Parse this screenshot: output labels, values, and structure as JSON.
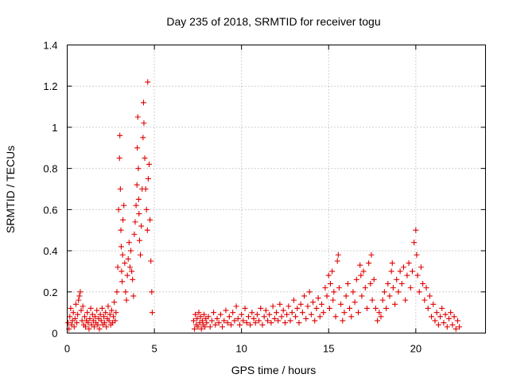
{
  "chart_data": {
    "type": "scatter",
    "title": "Day 235 of 2018, SRMTID for receiver togu",
    "xlabel": "GPS time / hours",
    "ylabel": "SRMTID / TECUs",
    "xlim": [
      0,
      24
    ],
    "ylim": [
      0,
      1.4
    ],
    "xticks": [
      0,
      5,
      10,
      15,
      20
    ],
    "xtick_labels": [
      "0",
      "5",
      "10",
      "15",
      "20"
    ],
    "yticks": [
      0,
      0.2,
      0.4,
      0.6,
      0.8,
      1.0,
      1.2,
      1.4
    ],
    "ytick_labels": [
      "0",
      "0.2",
      "0.4",
      "0.6",
      "0.8",
      "1",
      "1.2",
      "1.4"
    ],
    "grid": true,
    "marker": "+",
    "color": "#e00000",
    "series": [
      {
        "name": "SRMTID",
        "points": [
          [
            0.05,
            0.05
          ],
          [
            0.1,
            0.02
          ],
          [
            0.15,
            0.08
          ],
          [
            0.2,
            0.12
          ],
          [
            0.25,
            0.04
          ],
          [
            0.3,
            0.06
          ],
          [
            0.35,
            0.1
          ],
          [
            0.4,
            0.03
          ],
          [
            0.45,
            0.07
          ],
          [
            0.5,
            0.14
          ],
          [
            0.55,
            0.05
          ],
          [
            0.6,
            0.09
          ],
          [
            0.65,
            0.16
          ],
          [
            0.7,
            0.18
          ],
          [
            0.75,
            0.2
          ],
          [
            0.8,
            0.11
          ],
          [
            0.85,
            0.06
          ],
          [
            0.9,
            0.13
          ],
          [
            0.95,
            0.04
          ],
          [
            1.0,
            0.08
          ],
          [
            1.05,
            0.03
          ],
          [
            1.1,
            0.06
          ],
          [
            1.15,
            0.1
          ],
          [
            1.2,
            0.05
          ],
          [
            1.25,
            0.02
          ],
          [
            1.3,
            0.07
          ],
          [
            1.35,
            0.12
          ],
          [
            1.4,
            0.04
          ],
          [
            1.45,
            0.09
          ],
          [
            1.5,
            0.06
          ],
          [
            1.55,
            0.03
          ],
          [
            1.6,
            0.08
          ],
          [
            1.65,
            0.05
          ],
          [
            1.7,
            0.11
          ],
          [
            1.75,
            0.04
          ],
          [
            1.8,
            0.07
          ],
          [
            1.85,
            0.02
          ],
          [
            1.9,
            0.09
          ],
          [
            1.95,
            0.06
          ],
          [
            2.0,
            0.12
          ],
          [
            2.05,
            0.04
          ],
          [
            2.1,
            0.08
          ],
          [
            2.15,
            0.05
          ],
          [
            2.2,
            0.1
          ],
          [
            2.25,
            0.03
          ],
          [
            2.3,
            0.07
          ],
          [
            2.35,
            0.13
          ],
          [
            2.4,
            0.06
          ],
          [
            2.45,
            0.09
          ],
          [
            2.5,
            0.04
          ],
          [
            2.55,
            0.11
          ],
          [
            2.6,
            0.05
          ],
          [
            2.65,
            0.08
          ],
          [
            2.7,
            0.15
          ],
          [
            2.75,
            0.06
          ],
          [
            2.8,
            0.1
          ],
          [
            2.85,
            0.2
          ],
          [
            2.9,
            0.32
          ],
          [
            2.95,
            0.6
          ],
          [
            3.0,
            0.85
          ],
          [
            3.02,
            0.96
          ],
          [
            3.05,
            0.7
          ],
          [
            3.08,
            0.5
          ],
          [
            3.1,
            0.42
          ],
          [
            3.12,
            0.3
          ],
          [
            3.15,
            0.25
          ],
          [
            3.18,
            0.38
          ],
          [
            3.2,
            0.55
          ],
          [
            3.25,
            0.62
          ],
          [
            3.3,
            0.34
          ],
          [
            3.35,
            0.2
          ],
          [
            3.4,
            0.16
          ],
          [
            3.45,
            0.28
          ],
          [
            3.5,
            0.36
          ],
          [
            3.55,
            0.44
          ],
          [
            3.6,
            0.32
          ],
          [
            3.65,
            0.4
          ],
          [
            3.7,
            0.3
          ],
          [
            3.75,
            0.26
          ],
          [
            3.8,
            0.18
          ],
          [
            3.85,
            0.48
          ],
          [
            3.9,
            0.54
          ],
          [
            3.95,
            0.62
          ],
          [
            4.0,
            0.72
          ],
          [
            4.02,
            0.9
          ],
          [
            4.05,
            1.05
          ],
          [
            4.08,
            0.8
          ],
          [
            4.1,
            0.65
          ],
          [
            4.12,
            0.58
          ],
          [
            4.15,
            0.45
          ],
          [
            4.2,
            0.38
          ],
          [
            4.25,
            0.52
          ],
          [
            4.3,
            0.7
          ],
          [
            4.35,
            0.95
          ],
          [
            4.38,
            1.12
          ],
          [
            4.4,
            1.02
          ],
          [
            4.45,
            0.85
          ],
          [
            4.5,
            0.7
          ],
          [
            4.55,
            0.6
          ],
          [
            4.6,
            0.5
          ],
          [
            4.62,
            1.22
          ],
          [
            4.65,
            0.75
          ],
          [
            4.7,
            0.82
          ],
          [
            4.75,
            0.55
          ],
          [
            4.8,
            0.35
          ],
          [
            4.85,
            0.2
          ],
          [
            4.88,
            0.1
          ],
          [
            7.25,
            0.06
          ],
          [
            7.3,
            0.02
          ],
          [
            7.35,
            0.09
          ],
          [
            7.4,
            0.04
          ],
          [
            7.45,
            0.07
          ],
          [
            7.5,
            0.03
          ],
          [
            7.55,
            0.1
          ],
          [
            7.6,
            0.05
          ],
          [
            7.65,
            0.08
          ],
          [
            7.7,
            0.02
          ],
          [
            7.75,
            0.06
          ],
          [
            7.8,
            0.04
          ],
          [
            7.85,
            0.09
          ],
          [
            7.9,
            0.03
          ],
          [
            7.95,
            0.07
          ],
          [
            8.0,
            0.05
          ],
          [
            8.1,
            0.08
          ],
          [
            8.2,
            0.03
          ],
          [
            8.3,
            0.06
          ],
          [
            8.4,
            0.1
          ],
          [
            8.5,
            0.04
          ],
          [
            8.6,
            0.07
          ],
          [
            8.7,
            0.05
          ],
          [
            8.8,
            0.09
          ],
          [
            8.9,
            0.03
          ],
          [
            9.0,
            0.06
          ],
          [
            9.1,
            0.11
          ],
          [
            9.2,
            0.05
          ],
          [
            9.3,
            0.08
          ],
          [
            9.4,
            0.04
          ],
          [
            9.5,
            0.1
          ],
          [
            9.6,
            0.06
          ],
          [
            9.7,
            0.13
          ],
          [
            9.8,
            0.07
          ],
          [
            9.9,
            0.04
          ],
          [
            10.0,
            0.09
          ],
          [
            10.1,
            0.06
          ],
          [
            10.2,
            0.12
          ],
          [
            10.3,
            0.05
          ],
          [
            10.4,
            0.08
          ],
          [
            10.5,
            0.04
          ],
          [
            10.6,
            0.1
          ],
          [
            10.7,
            0.07
          ],
          [
            10.8,
            0.05
          ],
          [
            10.9,
            0.09
          ],
          [
            11.0,
            0.06
          ],
          [
            11.1,
            0.12
          ],
          [
            11.2,
            0.04
          ],
          [
            11.3,
            0.08
          ],
          [
            11.4,
            0.11
          ],
          [
            11.5,
            0.06
          ],
          [
            11.6,
            0.09
          ],
          [
            11.7,
            0.05
          ],
          [
            11.8,
            0.13
          ],
          [
            11.9,
            0.07
          ],
          [
            12.0,
            0.1
          ],
          [
            12.1,
            0.06
          ],
          [
            12.2,
            0.14
          ],
          [
            12.3,
            0.08
          ],
          [
            12.4,
            0.11
          ],
          [
            12.5,
            0.05
          ],
          [
            12.6,
            0.09
          ],
          [
            12.7,
            0.13
          ],
          [
            12.8,
            0.06
          ],
          [
            12.9,
            0.1
          ],
          [
            13.0,
            0.16
          ],
          [
            13.1,
            0.08
          ],
          [
            13.2,
            0.12
          ],
          [
            13.3,
            0.05
          ],
          [
            13.4,
            0.14
          ],
          [
            13.5,
            0.1
          ],
          [
            13.6,
            0.18
          ],
          [
            13.7,
            0.07
          ],
          [
            13.8,
            0.13
          ],
          [
            13.9,
            0.2
          ],
          [
            14.0,
            0.09
          ],
          [
            14.1,
            0.15
          ],
          [
            14.2,
            0.06
          ],
          [
            14.3,
            0.12
          ],
          [
            14.4,
            0.17
          ],
          [
            14.5,
            0.08
          ],
          [
            14.6,
            0.14
          ],
          [
            14.7,
            0.1
          ],
          [
            14.8,
            0.22
          ],
          [
            14.9,
            0.18
          ],
          [
            15.0,
            0.28
          ],
          [
            15.05,
            0.12
          ],
          [
            15.1,
            0.24
          ],
          [
            15.2,
            0.3
          ],
          [
            15.25,
            0.16
          ],
          [
            15.3,
            0.2
          ],
          [
            15.4,
            0.08
          ],
          [
            15.5,
            0.35
          ],
          [
            15.55,
            0.38
          ],
          [
            15.6,
            0.22
          ],
          [
            15.7,
            0.14
          ],
          [
            15.8,
            0.06
          ],
          [
            15.9,
            0.1
          ],
          [
            16.0,
            0.18
          ],
          [
            16.1,
            0.24
          ],
          [
            16.2,
            0.12
          ],
          [
            16.3,
            0.08
          ],
          [
            16.4,
            0.2
          ],
          [
            16.5,
            0.15
          ],
          [
            16.6,
            0.26
          ],
          [
            16.7,
            0.1
          ],
          [
            16.8,
            0.33
          ],
          [
            16.85,
            0.28
          ],
          [
            16.9,
            0.18
          ],
          [
            17.0,
            0.3
          ],
          [
            17.1,
            0.22
          ],
          [
            17.2,
            0.12
          ],
          [
            17.3,
            0.34
          ],
          [
            17.4,
            0.24
          ],
          [
            17.45,
            0.38
          ],
          [
            17.5,
            0.16
          ],
          [
            17.6,
            0.26
          ],
          [
            17.7,
            0.12
          ],
          [
            17.8,
            0.06
          ],
          [
            17.9,
            0.1
          ],
          [
            18.0,
            0.08
          ],
          [
            18.1,
            0.16
          ],
          [
            18.2,
            0.2
          ],
          [
            18.3,
            0.12
          ],
          [
            18.4,
            0.24
          ],
          [
            18.5,
            0.18
          ],
          [
            18.6,
            0.3
          ],
          [
            18.65,
            0.34
          ],
          [
            18.7,
            0.22
          ],
          [
            18.8,
            0.14
          ],
          [
            18.9,
            0.26
          ],
          [
            19.0,
            0.2
          ],
          [
            19.1,
            0.3
          ],
          [
            19.2,
            0.24
          ],
          [
            19.3,
            0.32
          ],
          [
            19.4,
            0.16
          ],
          [
            19.5,
            0.28
          ],
          [
            19.6,
            0.34
          ],
          [
            19.7,
            0.22
          ],
          [
            19.8,
            0.3
          ],
          [
            19.9,
            0.44
          ],
          [
            20.0,
            0.5
          ],
          [
            20.05,
            0.38
          ],
          [
            20.1,
            0.28
          ],
          [
            20.2,
            0.2
          ],
          [
            20.3,
            0.32
          ],
          [
            20.4,
            0.24
          ],
          [
            20.5,
            0.16
          ],
          [
            20.6,
            0.22
          ],
          [
            20.7,
            0.12
          ],
          [
            20.8,
            0.18
          ],
          [
            20.9,
            0.08
          ],
          [
            21.0,
            0.14
          ],
          [
            21.1,
            0.06
          ],
          [
            21.2,
            0.1
          ],
          [
            21.3,
            0.04
          ],
          [
            21.4,
            0.08
          ],
          [
            21.5,
            0.12
          ],
          [
            21.6,
            0.05
          ],
          [
            21.7,
            0.09
          ],
          [
            21.8,
            0.03
          ],
          [
            21.9,
            0.07
          ],
          [
            22.0,
            0.1
          ],
          [
            22.1,
            0.04
          ],
          [
            22.2,
            0.08
          ],
          [
            22.3,
            0.02
          ],
          [
            22.4,
            0.06
          ],
          [
            22.5,
            0.03
          ]
        ]
      }
    ]
  }
}
